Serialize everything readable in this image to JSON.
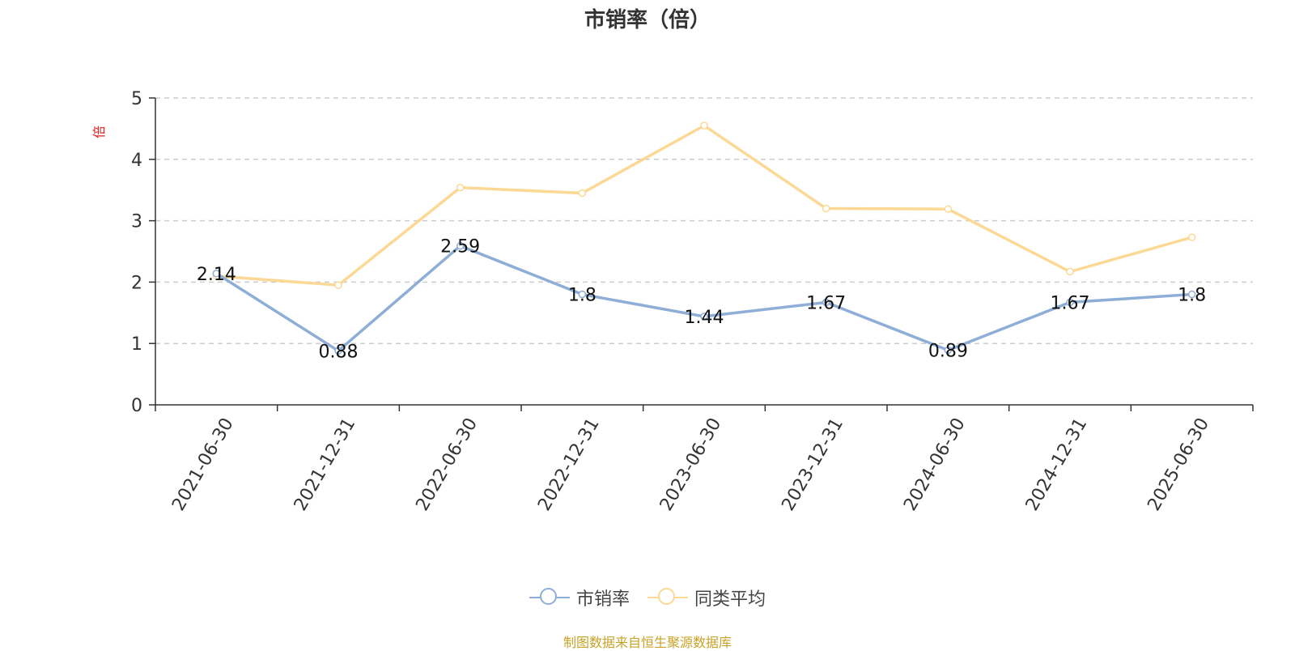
{
  "chart_data": {
    "type": "line",
    "title": "市销率（倍）",
    "ylabel": "倍",
    "xlabel": "",
    "ylim": [
      0,
      5
    ],
    "yticks": [
      0,
      1,
      2,
      3,
      4,
      5
    ],
    "grid": true,
    "legend_position": "bottom",
    "categories": [
      "2021-06-30",
      "2021-12-31",
      "2022-06-30",
      "2022-12-31",
      "2023-06-30",
      "2023-12-31",
      "2024-06-30",
      "2024-12-31",
      "2025-06-30"
    ],
    "series": [
      {
        "name": "市销率",
        "color": "#8eaed8",
        "values": [
          2.14,
          0.88,
          2.59,
          1.8,
          1.44,
          1.67,
          0.89,
          1.67,
          1.8
        ],
        "labels": [
          "2.14",
          "0.88",
          "2.59",
          "1.8",
          "1.44",
          "1.67",
          "0.89",
          "1.67",
          "1.8"
        ]
      },
      {
        "name": "同类平均",
        "color": "#fbd995",
        "values": [
          2.1,
          1.95,
          3.54,
          3.45,
          4.55,
          3.2,
          3.19,
          2.17,
          2.73
        ]
      }
    ]
  },
  "source": "制图数据来自恒生聚源数据库"
}
